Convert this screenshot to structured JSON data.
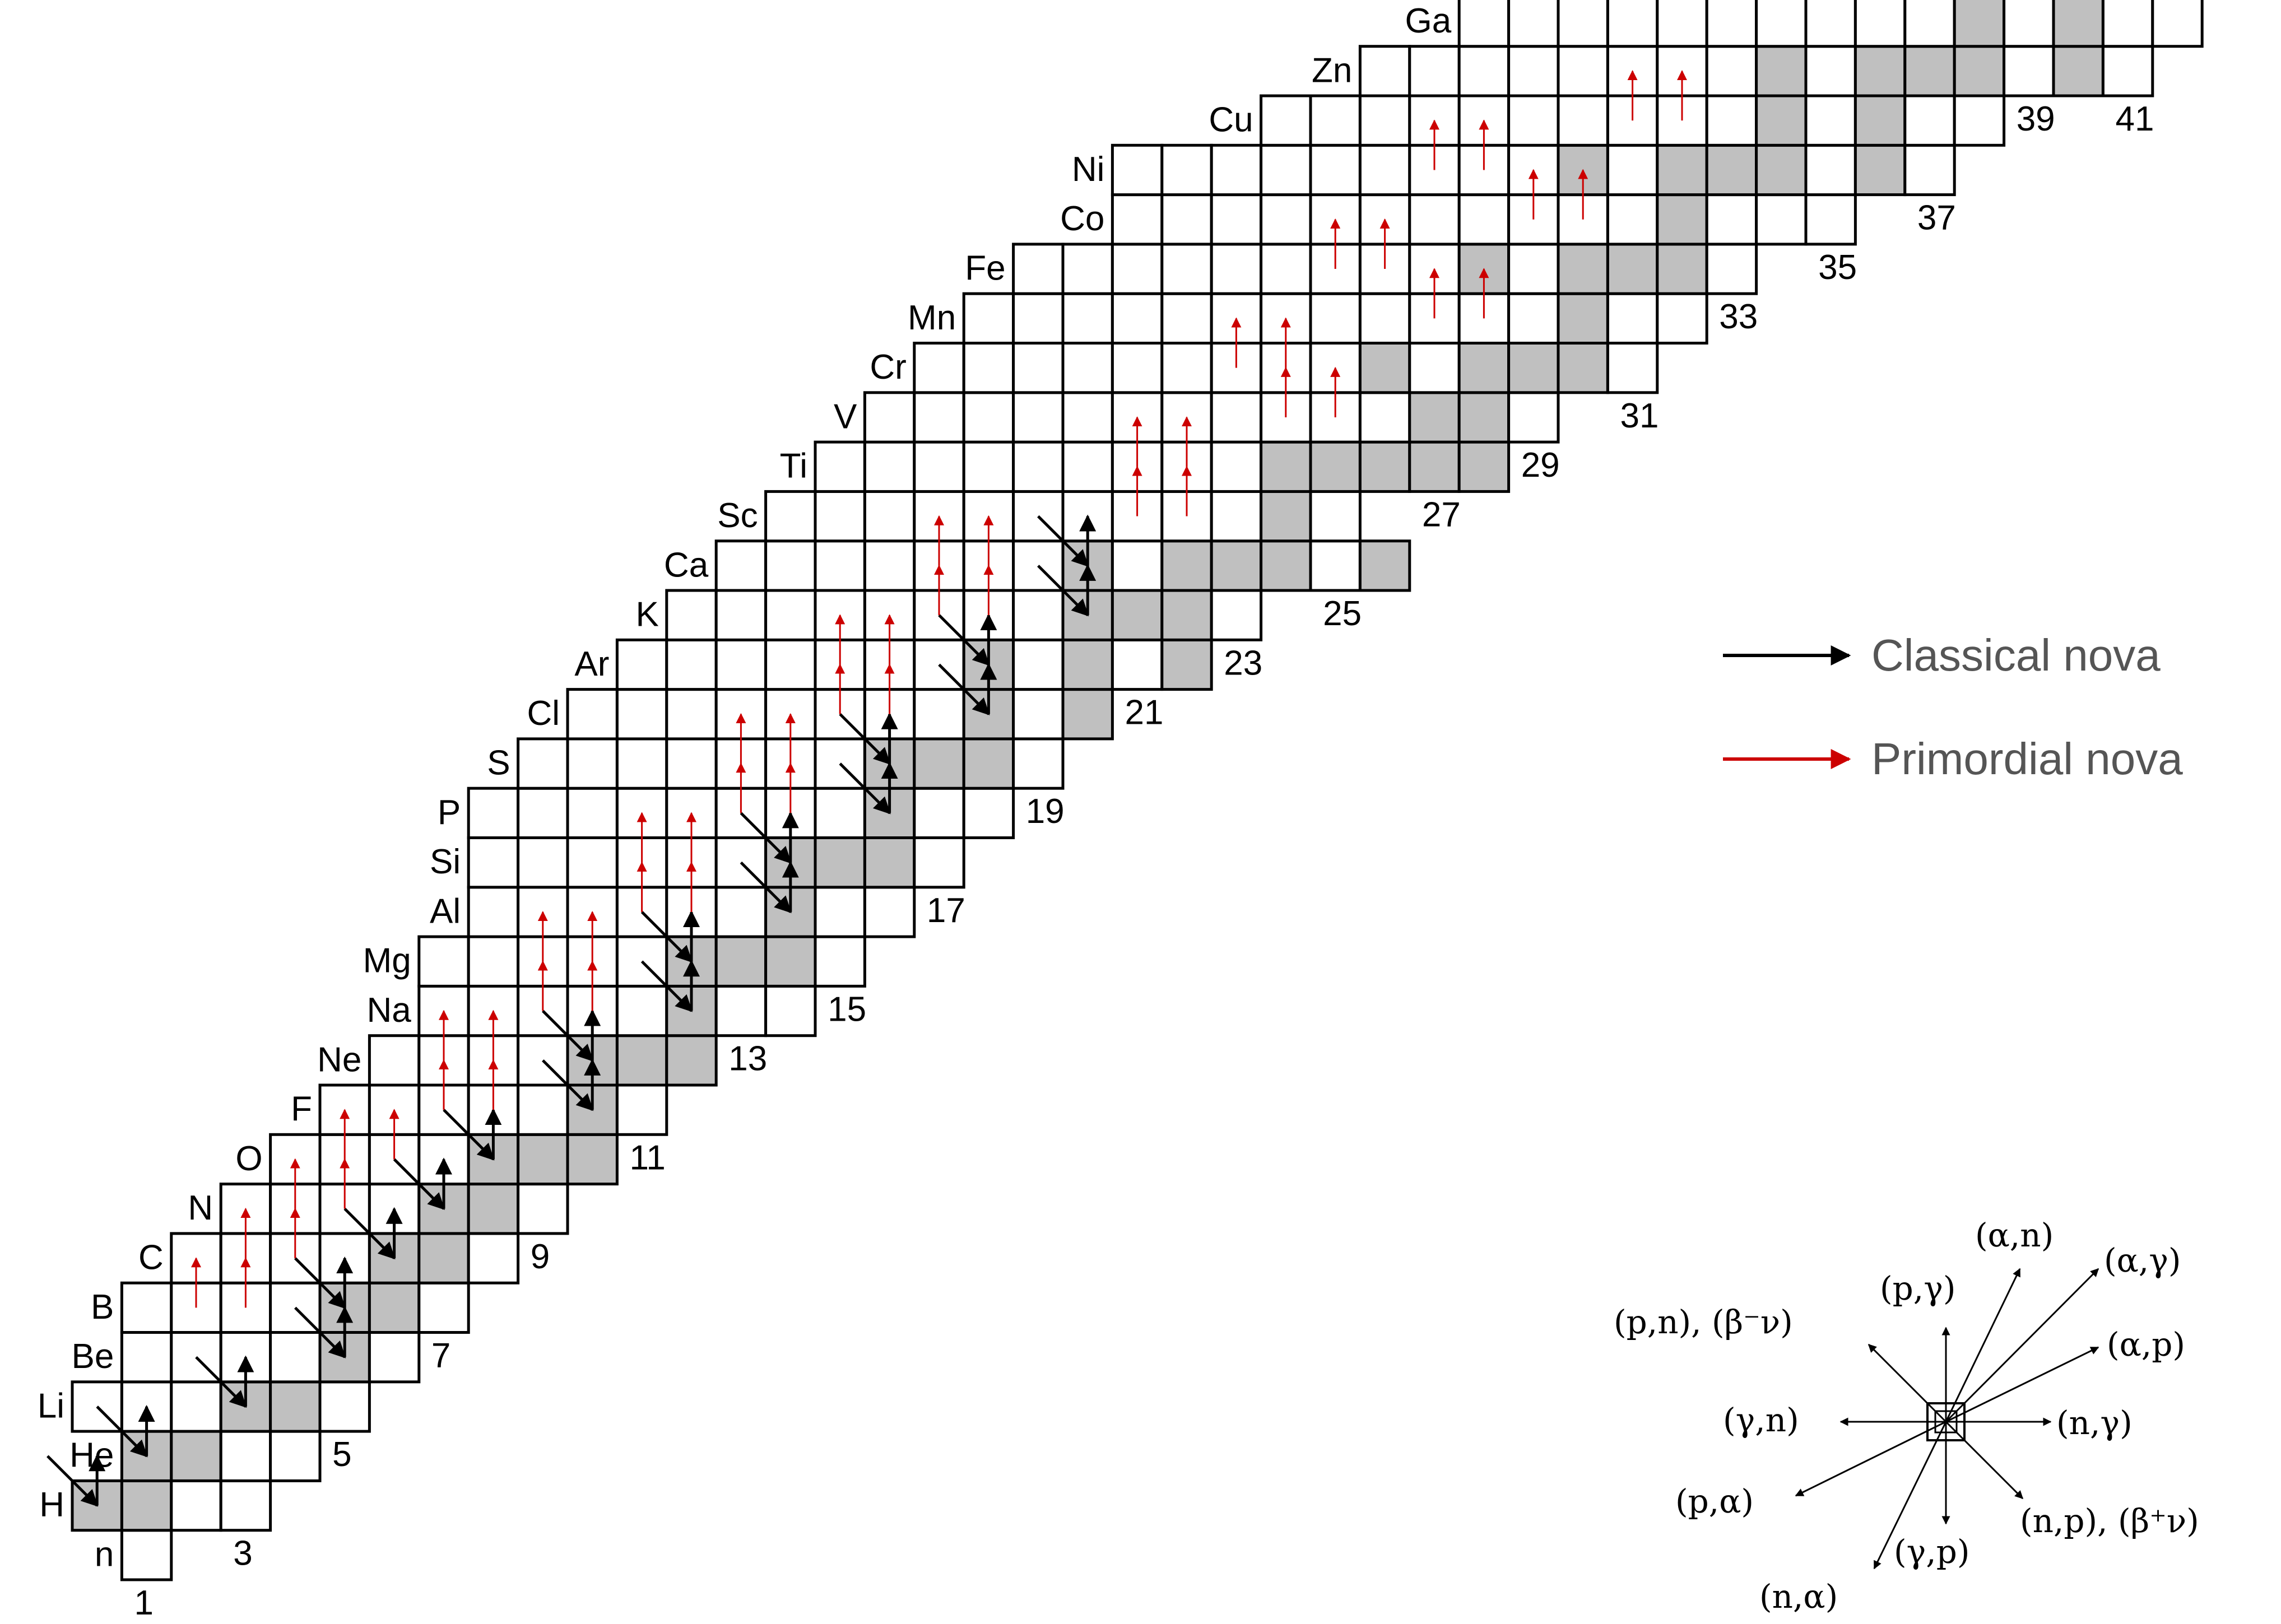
{
  "chart_data": {
    "type": "table",
    "title": "",
    "rows": [
      {
        "element": "n",
        "z": 0,
        "n_min": 1,
        "n_max": 1,
        "stable": []
      },
      {
        "element": "H",
        "z": 1,
        "n_min": 0,
        "n_max": 3,
        "stable": [
          0,
          1
        ]
      },
      {
        "element": "He",
        "z": 2,
        "n_min": 1,
        "n_max": 4,
        "stable": [
          1,
          2
        ]
      },
      {
        "element": "Li",
        "z": 3,
        "n_min": 0,
        "n_max": 5,
        "stable": [
          3,
          4
        ]
      },
      {
        "element": "Be",
        "z": 4,
        "n_min": 1,
        "n_max": 6,
        "stable": [
          5
        ]
      },
      {
        "element": "B",
        "z": 5,
        "n_min": 1,
        "n_max": 7,
        "stable": [
          5,
          6
        ]
      },
      {
        "element": "C",
        "z": 6,
        "n_min": 2,
        "n_max": 8,
        "stable": [
          6,
          7
        ]
      },
      {
        "element": "N",
        "z": 7,
        "n_min": 3,
        "n_max": 9,
        "stable": [
          7,
          8
        ]
      },
      {
        "element": "O",
        "z": 8,
        "n_min": 4,
        "n_max": 10,
        "stable": [
          8,
          9,
          10
        ]
      },
      {
        "element": "F",
        "z": 9,
        "n_min": 5,
        "n_max": 11,
        "stable": [
          10
        ]
      },
      {
        "element": "Ne",
        "z": 10,
        "n_min": 6,
        "n_max": 12,
        "stable": [
          10,
          11,
          12
        ]
      },
      {
        "element": "Na",
        "z": 11,
        "n_min": 7,
        "n_max": 14,
        "stable": [
          12
        ]
      },
      {
        "element": "Mg",
        "z": 12,
        "n_min": 7,
        "n_max": 15,
        "stable": [
          12,
          13,
          14
        ]
      },
      {
        "element": "Al",
        "z": 13,
        "n_min": 8,
        "n_max": 16,
        "stable": [
          14
        ]
      },
      {
        "element": "Si",
        "z": 14,
        "n_min": 8,
        "n_max": 17,
        "stable": [
          14,
          15,
          16
        ]
      },
      {
        "element": "P",
        "z": 15,
        "n_min": 8,
        "n_max": 18,
        "stable": [
          16
        ]
      },
      {
        "element": "S",
        "z": 16,
        "n_min": 9,
        "n_max": 19,
        "stable": [
          16,
          17,
          18,
          20
        ]
      },
      {
        "element": "Cl",
        "z": 17,
        "n_min": 10,
        "n_max": 20,
        "stable": [
          18,
          20
        ]
      },
      {
        "element": "Ar",
        "z": 18,
        "n_min": 11,
        "n_max": 22,
        "stable": [
          18,
          20,
          22
        ]
      },
      {
        "element": "K",
        "z": 19,
        "n_min": 12,
        "n_max": 23,
        "stable": [
          20,
          21,
          22
        ]
      },
      {
        "element": "Ca",
        "z": 20,
        "n_min": 13,
        "n_max": 26,
        "stable": [
          20,
          22,
          23,
          24,
          26
        ]
      },
      {
        "element": "Sc",
        "z": 21,
        "n_min": 14,
        "n_max": 25,
        "stable": [
          24
        ]
      },
      {
        "element": "Ti",
        "z": 22,
        "n_min": 15,
        "n_max": 28,
        "stable": [
          24,
          25,
          26,
          27,
          28
        ]
      },
      {
        "element": "V",
        "z": 23,
        "n_min": 16,
        "n_max": 29,
        "stable": [
          27,
          28
        ]
      },
      {
        "element": "Cr",
        "z": 24,
        "n_min": 17,
        "n_max": 31,
        "stable": [
          26,
          28,
          29,
          30
        ]
      },
      {
        "element": "Mn",
        "z": 25,
        "n_min": 18,
        "n_max": 32,
        "stable": [
          30
        ]
      },
      {
        "element": "Fe",
        "z": 26,
        "n_min": 19,
        "n_max": 33,
        "stable": [
          28,
          30,
          31,
          32
        ]
      },
      {
        "element": "Co",
        "z": 27,
        "n_min": 21,
        "n_max": 35,
        "stable": [
          32
        ]
      },
      {
        "element": "Ni",
        "z": 28,
        "n_min": 21,
        "n_max": 37,
        "stable": [
          30,
          32,
          33,
          34,
          36
        ]
      },
      {
        "element": "Cu",
        "z": 29,
        "n_min": 24,
        "n_max": 38,
        "stable": [
          34,
          36
        ]
      },
      {
        "element": "Zn",
        "z": 30,
        "n_min": 26,
        "n_max": 41,
        "stable": [
          34,
          36,
          37,
          38,
          40
        ]
      },
      {
        "element": "Ga",
        "z": 31,
        "n_min": 28,
        "n_max": 42,
        "stable": [
          38,
          40
        ]
      }
    ],
    "neutron_labels": [
      "1",
      "3",
      "5",
      "7",
      "9",
      "11",
      "13",
      "15",
      "17",
      "19",
      "21",
      "23",
      "25",
      "27",
      "29",
      "31",
      "33",
      "35",
      "37",
      "39",
      "41"
    ],
    "legend": [
      {
        "label": "Classical nova",
        "color": "#000000"
      },
      {
        "label": "Primordial nova",
        "color": "#cc0000"
      }
    ],
    "flows": {
      "classical_color": "#000000",
      "primordial_color": "#cc0000"
    },
    "reaction_key": {
      "pn_beta_minus": "(p,n), (β⁻ν)",
      "p_gamma": "(p,γ)",
      "alpha_n": "(α,n)",
      "alpha_gamma": "(α,γ)",
      "alpha_p": "(α,p)",
      "gamma_n": "(γ,n)",
      "n_gamma": "(n,γ)",
      "p_alpha": "(p,α)",
      "np_beta_plus": "(n,p), (β⁺ν)",
      "gamma_p": "(γ,p)",
      "n_alpha": "(n,α)"
    }
  }
}
